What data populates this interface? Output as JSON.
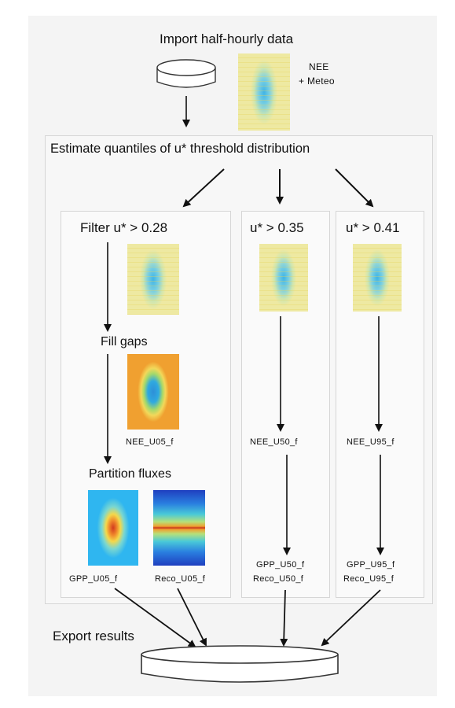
{
  "steps": {
    "import": "Import half-hourly data",
    "nee_meteo_line1": "NEE",
    "nee_meteo_line2": "+ Meteo",
    "estimate": "Estimate quantiles of u* threshold distribution",
    "export": "Export results"
  },
  "branches": [
    {
      "filter": "Filter u* > 0.28",
      "fill": "Fill gaps",
      "partition": "Partition fluxes",
      "nee": "NEE_U05_f",
      "gpp": "GPP_U05_f",
      "reco": "Reco_U05_f"
    },
    {
      "filter": "u* > 0.35",
      "nee": "NEE_U50_f",
      "gpp": "GPP_U50_f",
      "reco": "Reco_U50_f"
    },
    {
      "filter": "u* > 0.41",
      "nee": "NEE_U95_f",
      "gpp": "GPP_U95_f",
      "reco": "Reco_U95_f"
    }
  ],
  "colors": {
    "box_border": "#d6d6d6",
    "background": "#f4f4f4",
    "arrow": "#111111"
  },
  "icons": [
    "database-cylinder-icon",
    "heatmap-thumbnail"
  ]
}
